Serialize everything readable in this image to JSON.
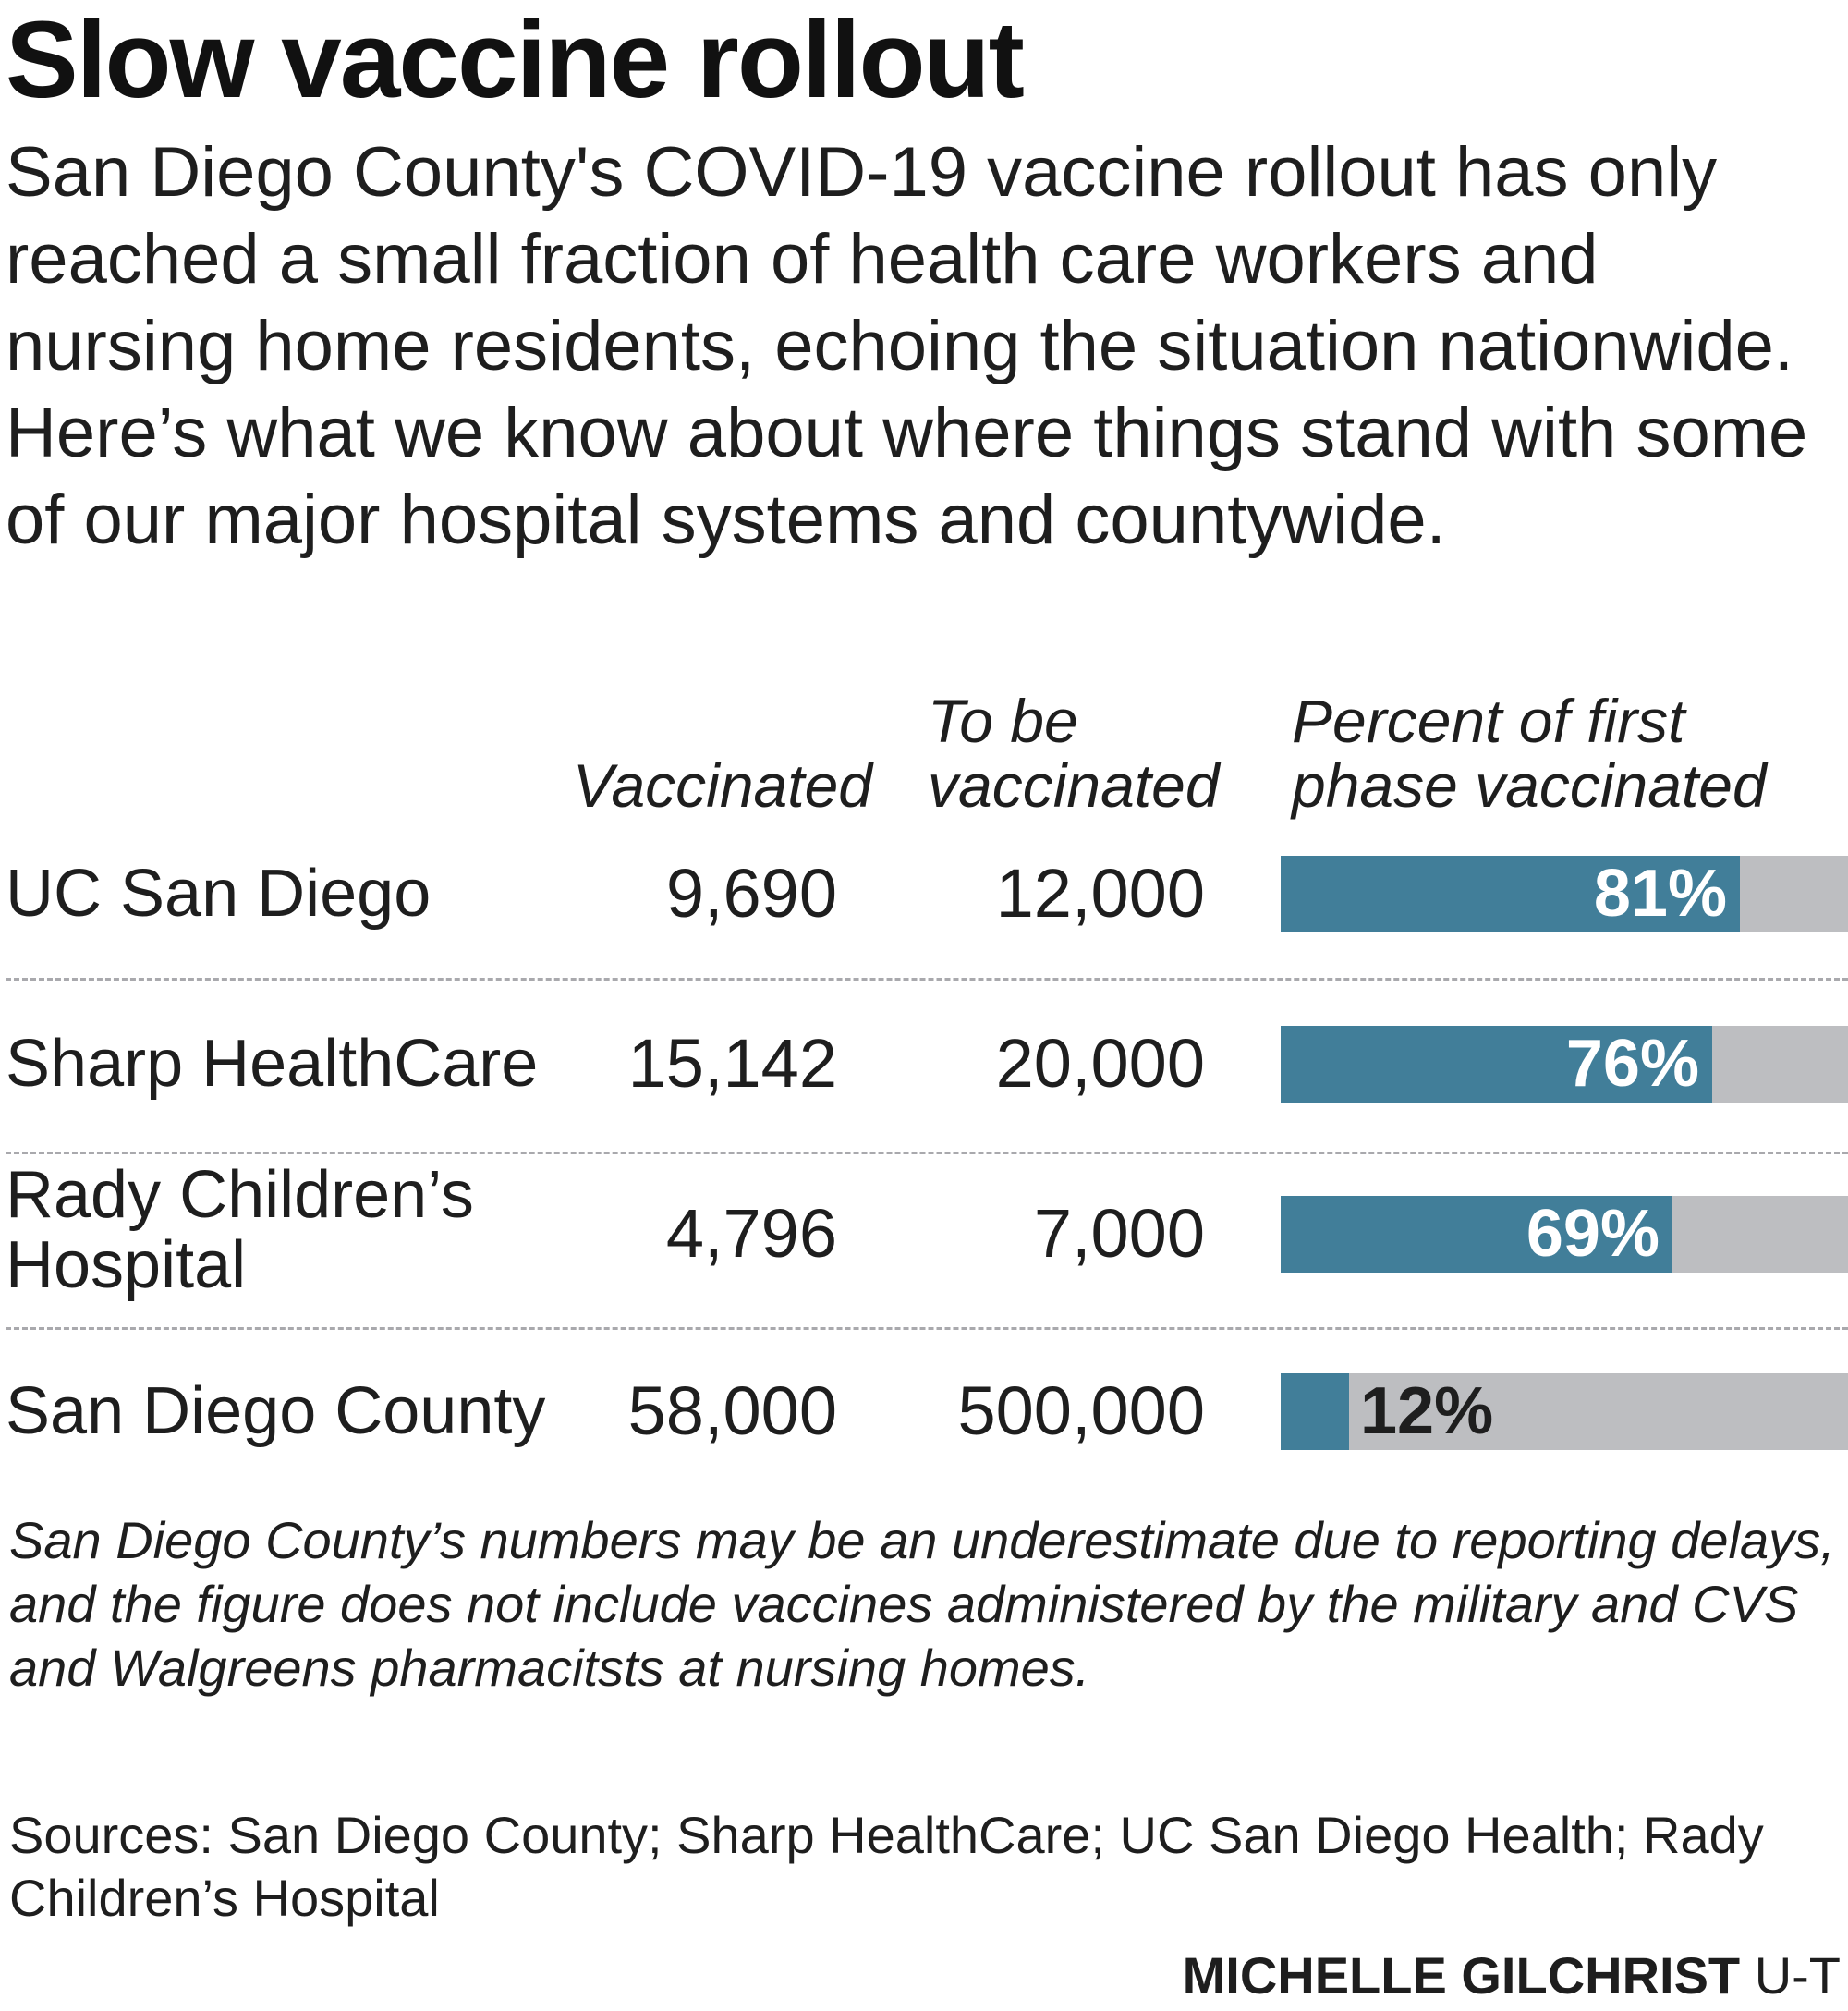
{
  "title": "Slow vaccine rollout",
  "subtitle": "San Diego County's COVID-19 vaccine rollout has only reached a small fraction of health care workers and nursing home residents, echoing the situation nationwide. Here’s what we know about where things stand with some of our major hospital systems and countywide.",
  "columns": {
    "vaccinated": "Vaccinated",
    "to_be_vaccinated_line1": "To be",
    "to_be_vaccinated_line2": "vaccinated",
    "percent_line1": "Percent of first",
    "percent_line2": "phase vaccinated"
  },
  "colors": {
    "bar_fill": "#417e99",
    "bar_track": "#bdbec1",
    "divider": "#a9a9ad"
  },
  "chart_data": {
    "type": "table",
    "columns": [
      "Vaccinated",
      "To be vaccinated",
      "Percent of first phase vaccinated"
    ],
    "rows": [
      {
        "label_line1": "UC San Diego",
        "label_line2": "",
        "vaccinated": "9,690",
        "to_be_vaccinated": "12,000",
        "percent": 81,
        "percent_label": "81%"
      },
      {
        "label_line1": "Sharp HealthCare",
        "label_line2": "",
        "vaccinated": "15,142",
        "to_be_vaccinated": "20,000",
        "percent": 76,
        "percent_label": "76%"
      },
      {
        "label_line1": "Rady Children’s",
        "label_line2": "Hospital",
        "vaccinated": "4,796",
        "to_be_vaccinated": "7,000",
        "percent": 69,
        "percent_label": "69%"
      },
      {
        "label_line1": "San Diego County",
        "label_line2": "",
        "vaccinated": "58,000",
        "to_be_vaccinated": "500,000",
        "percent": 12,
        "percent_label": "12%"
      }
    ]
  },
  "note": "San Diego County’s numbers may be an underestimate due to reporting delays, and the figure does not include vaccines administered by the military and CVS and Walgreens pharmacitsts at nursing homes.",
  "sources": "Sources: San Diego County; Sharp HealthCare; UC San Diego Health; Rady Children’s Hospital",
  "credit": {
    "name": "MICHELLE GILCHRIST",
    "org": "U-T"
  }
}
